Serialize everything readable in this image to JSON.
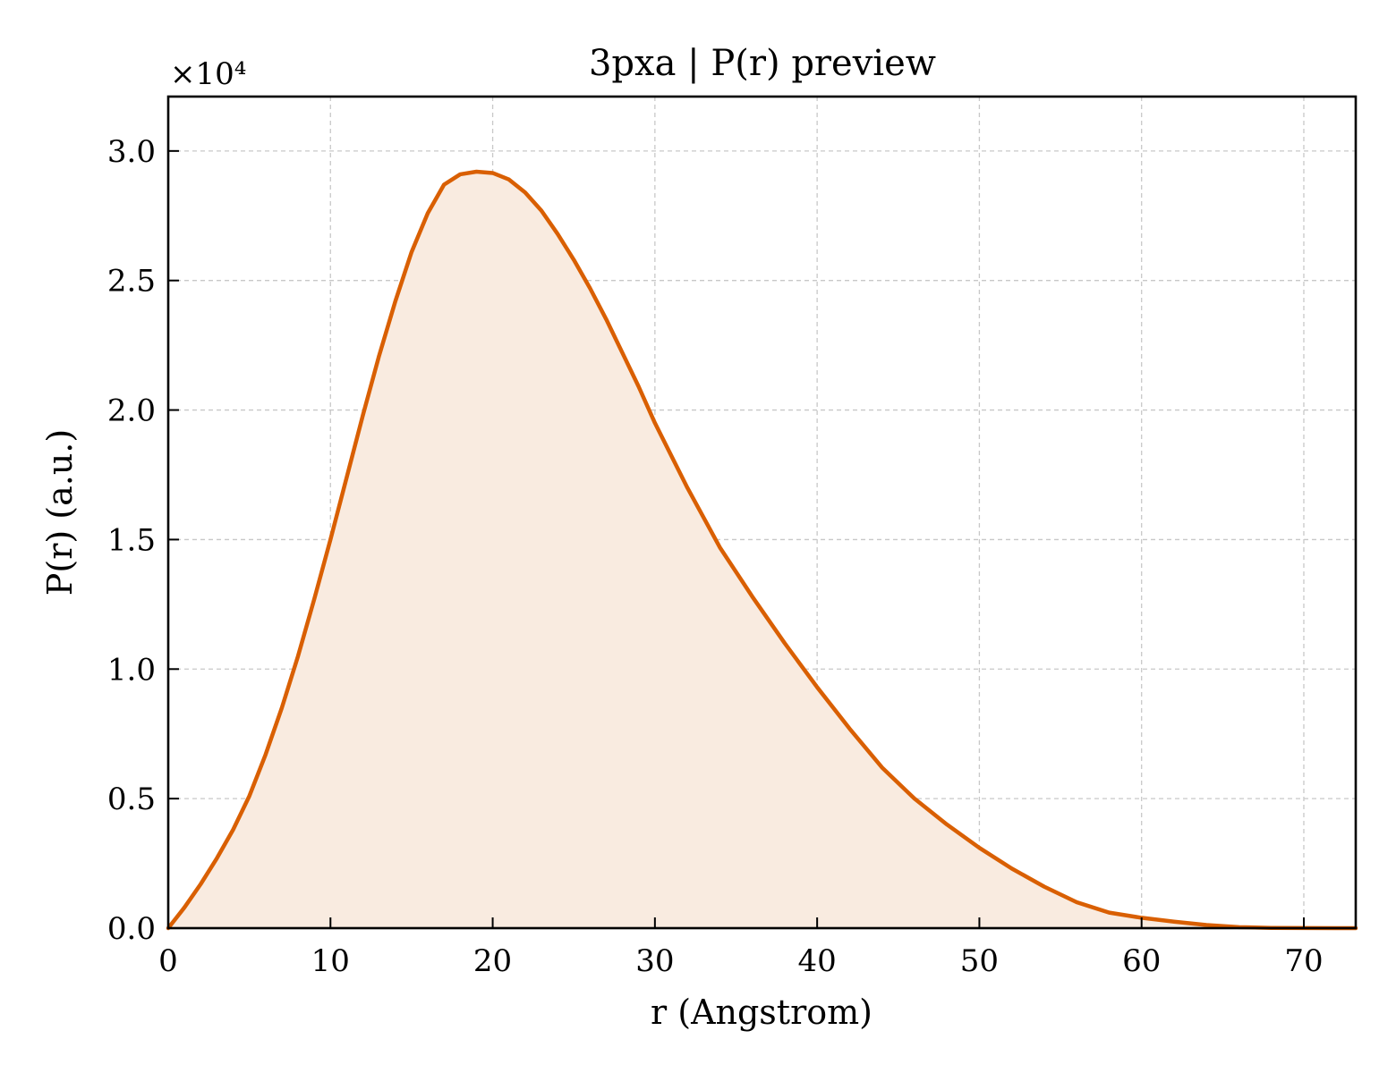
{
  "chart_data": {
    "type": "area",
    "title": "3pxa | P(r) preview",
    "xlabel": "r (Angstrom)",
    "ylabel": "P(r) (a.u.)",
    "y_multiplier_label": "×10⁴",
    "xlim": [
      0,
      73.2
    ],
    "ylim": [
      0,
      32100
    ],
    "xticks": [
      0,
      10,
      20,
      30,
      40,
      50,
      60,
      70
    ],
    "yticks": [
      0,
      5000,
      10000,
      15000,
      20000,
      25000,
      30000
    ],
    "xtick_labels": [
      "0",
      "10",
      "20",
      "30",
      "40",
      "50",
      "60",
      "70"
    ],
    "ytick_labels": [
      "0.0",
      "0.5",
      "1.0",
      "1.5",
      "2.0",
      "2.5",
      "3.0"
    ],
    "grid": true,
    "line_color": "#d95f02",
    "fill_color": "#f9ebe0",
    "series": [
      {
        "x": [
          0,
          1,
          2,
          3,
          4,
          5,
          6,
          7,
          8,
          9,
          10,
          11,
          12,
          13,
          14,
          15,
          16,
          17,
          18,
          19,
          20,
          21,
          22,
          23,
          24,
          25,
          26,
          27,
          28,
          29,
          30,
          32,
          34,
          36,
          38,
          40,
          42,
          44,
          46,
          48,
          50,
          52,
          54,
          56,
          58,
          60,
          62,
          64,
          66,
          68,
          70,
          72,
          73.2
        ],
        "y": [
          0,
          800,
          1700,
          2700,
          3800,
          5100,
          6700,
          8500,
          10500,
          12700,
          15000,
          17400,
          19800,
          22100,
          24200,
          26100,
          27600,
          28700,
          29100,
          29200,
          29150,
          28900,
          28400,
          27700,
          26800,
          25800,
          24700,
          23500,
          22200,
          20900,
          19500,
          17000,
          14700,
          12800,
          11000,
          9300,
          7700,
          6200,
          5000,
          4000,
          3100,
          2300,
          1600,
          1000,
          600,
          400,
          250,
          120,
          40,
          10,
          5,
          0,
          0
        ]
      }
    ]
  }
}
